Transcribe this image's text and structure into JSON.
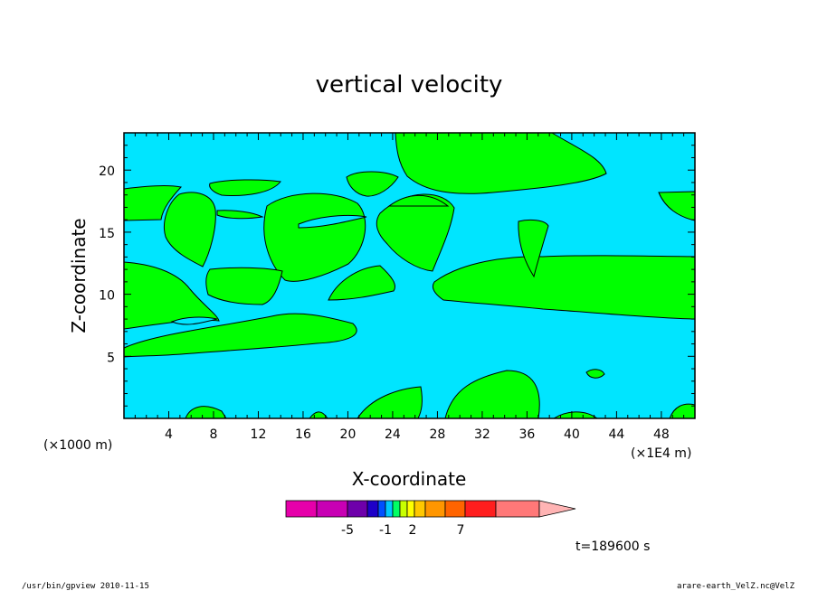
{
  "chart_data": {
    "type": "heatmap",
    "title": "vertical velocity",
    "xlabel": "X-coordinate",
    "ylabel": "Z-coordinate",
    "x_unit_label": "(×1000 m)",
    "x_scale_label": "(×1E4 m)",
    "xlim": [
      0,
      51
    ],
    "ylim": [
      0,
      23
    ],
    "xticks": [
      4,
      8,
      12,
      16,
      20,
      24,
      28,
      32,
      36,
      40,
      44,
      48
    ],
    "yticks": [
      5,
      10,
      15,
      20
    ],
    "regions": [
      {
        "label": "green",
        "color": "#00ff00"
      },
      {
        "label": "cyan",
        "color": "#00e5ff"
      }
    ],
    "colorbar": {
      "colors": [
        "#e600aa",
        "#c800b4",
        "#6e00aa",
        "#1e00c8",
        "#0050ff",
        "#00c8ff",
        "#00ff64",
        "#c8ff00",
        "#ffff00",
        "#ffc800",
        "#ff9600",
        "#ff6400",
        "#ff1e1e",
        "#ff7878",
        "#ffb4b4"
      ],
      "tick_labels": [
        "-5",
        "-1",
        "2",
        "7"
      ]
    },
    "time_label": "t=189600 s"
  },
  "footer": {
    "left": "/usr/bin/gpview   2010-11-15",
    "right": "arare-earth_VelZ.nc@VelZ"
  }
}
